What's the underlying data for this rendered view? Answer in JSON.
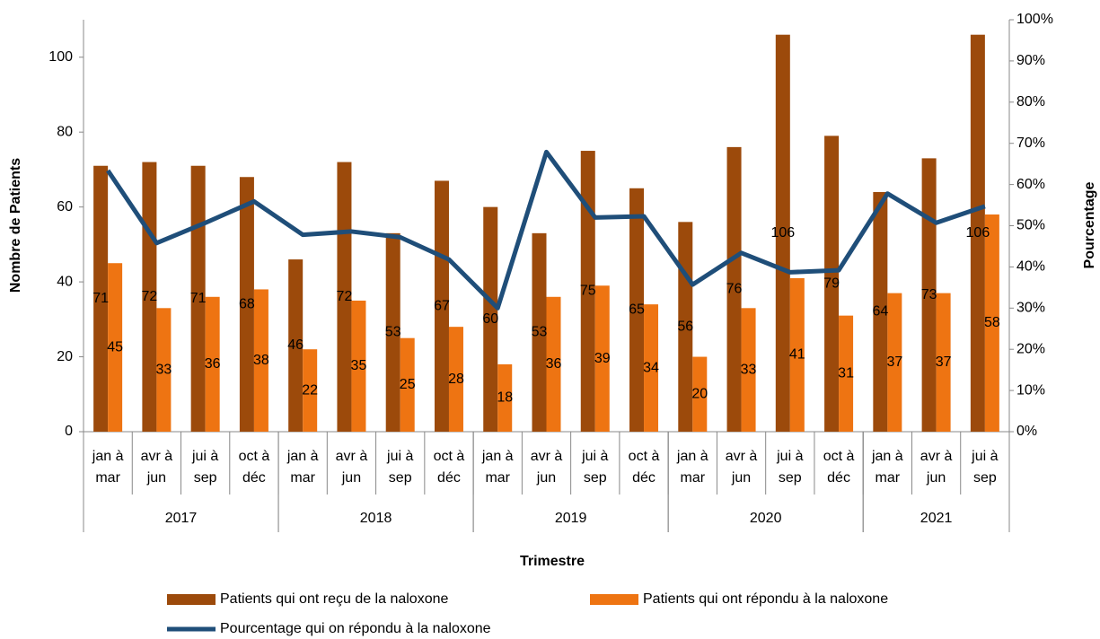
{
  "chart_data": {
    "type": "bar",
    "x_label": "Trimestre",
    "y_label": "Nombre de Patients",
    "y2_label": "Pourcentage",
    "categories": [
      "jan à mar",
      "avr à jun",
      "jui à sep",
      "oct à déc",
      "jan à mar",
      "avr à jun",
      "jui à sep",
      "oct à déc",
      "jan à mar",
      "avr à jun",
      "jui à sep",
      "oct à déc",
      "jan à mar",
      "avr à jun",
      "jui à sep",
      "oct à déc",
      "jan à mar",
      "avr à jun",
      "jui à sep"
    ],
    "category_groups": [
      {
        "label": "2017",
        "categories": 4
      },
      {
        "label": "2018",
        "categories": 4
      },
      {
        "label": "2019",
        "categories": 4
      },
      {
        "label": "2020",
        "categories": 4
      },
      {
        "label": "2021",
        "categories": 3
      }
    ],
    "series": [
      {
        "name": "Patients qui ont reçu de la naloxone",
        "color": "#9c4a0b",
        "axis": "y",
        "values": [
          71,
          72,
          71,
          68,
          46,
          72,
          53,
          67,
          60,
          53,
          75,
          65,
          56,
          76,
          106,
          79,
          64,
          73,
          106
        ]
      },
      {
        "name": "Patients qui ont répondu à la naloxone",
        "color": "#ee7412",
        "axis": "y",
        "values": [
          45,
          33,
          36,
          38,
          22,
          35,
          25,
          28,
          18,
          36,
          39,
          34,
          20,
          33,
          41,
          31,
          37,
          37,
          58
        ]
      },
      {
        "name": "Pourcentage qui on répondu à la naloxone",
        "color": "#1f4e79",
        "axis": "y2",
        "type": "line",
        "values": [
          63.4,
          45.8,
          50.7,
          55.9,
          47.8,
          48.6,
          47.2,
          41.8,
          30.0,
          67.9,
          52.0,
          52.3,
          35.7,
          43.4,
          38.7,
          39.2,
          57.8,
          50.7,
          54.7
        ]
      }
    ],
    "ylim": [
      0,
      110
    ],
    "yticks": [
      0,
      20,
      40,
      60,
      80,
      100
    ],
    "y2lim": [
      0,
      100
    ],
    "y2ticks": [
      {
        "value": 0,
        "label": "0%"
      },
      {
        "value": 10,
        "label": "10%"
      },
      {
        "value": 20,
        "label": "20%"
      },
      {
        "value": 30,
        "label": "30%"
      },
      {
        "value": 40,
        "label": "40%"
      },
      {
        "value": 50,
        "label": "50%"
      },
      {
        "value": 60,
        "label": "60%"
      },
      {
        "value": 70,
        "label": "70%"
      },
      {
        "value": 80,
        "label": "80%"
      },
      {
        "value": 90,
        "label": "90%"
      },
      {
        "value": 100,
        "label": "100%"
      }
    ],
    "grid": false
  }
}
